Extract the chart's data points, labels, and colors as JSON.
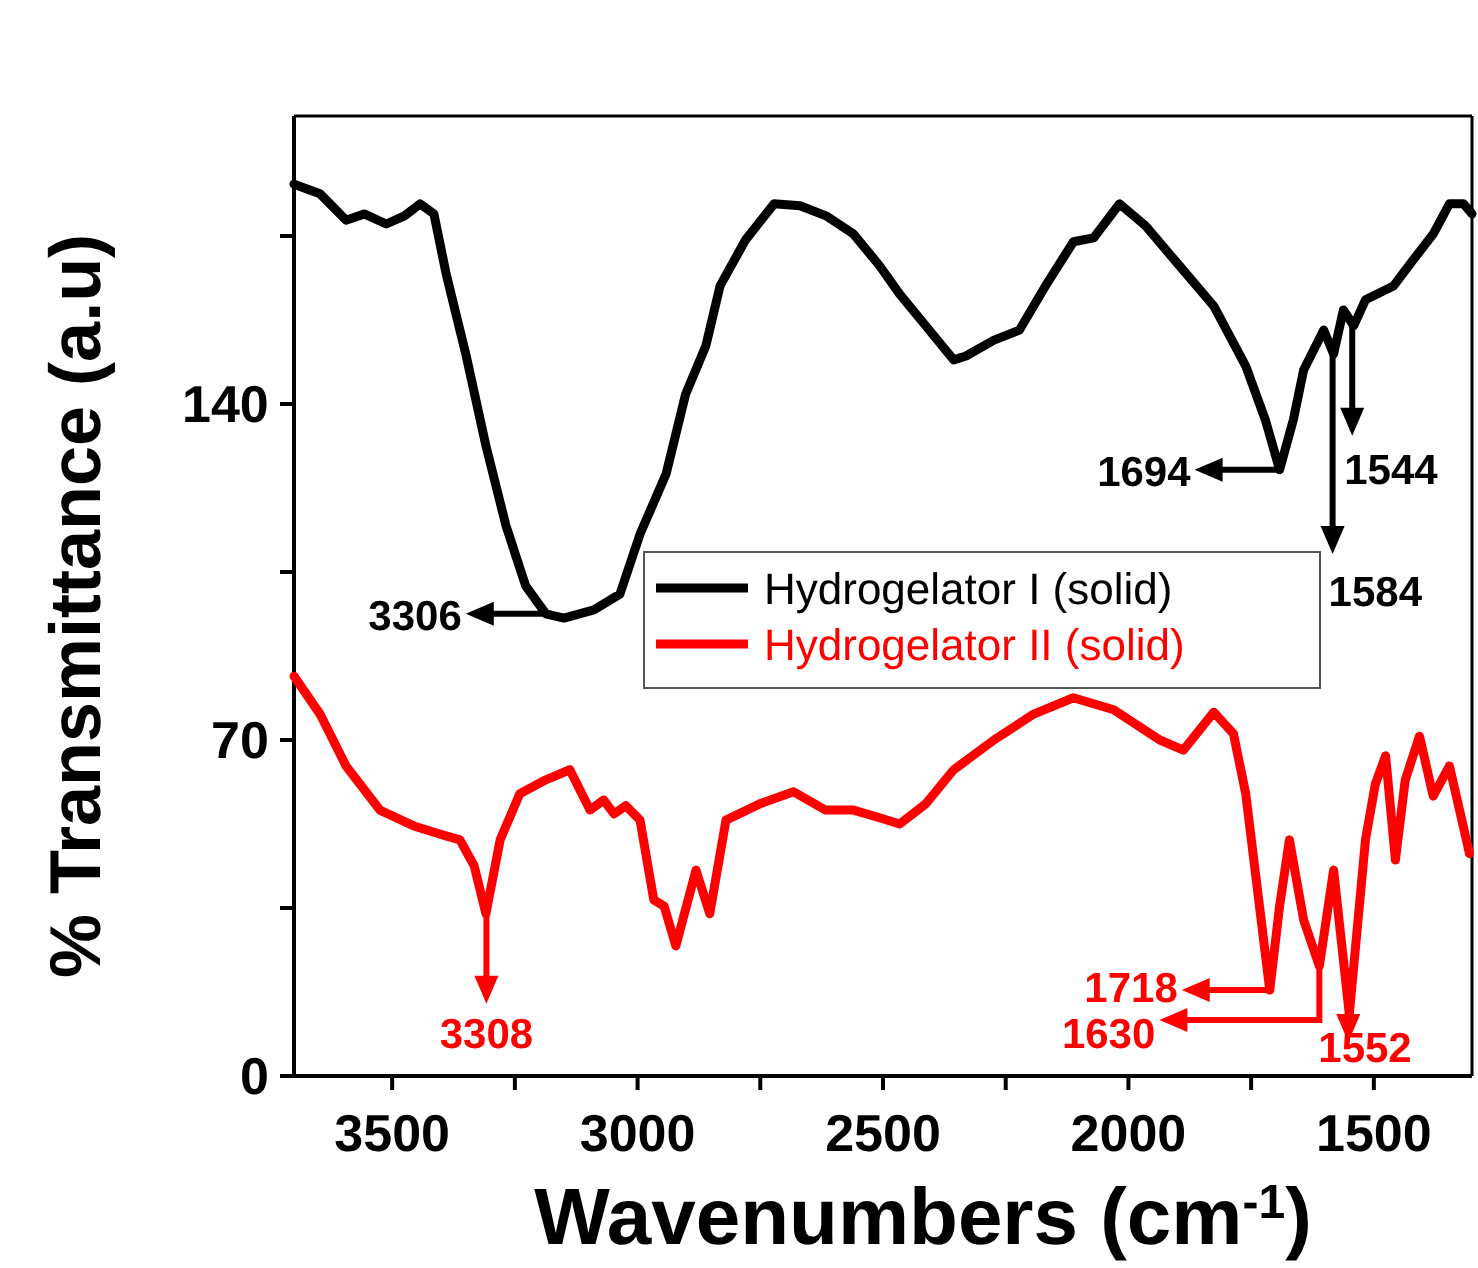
{
  "chart_data": {
    "type": "line",
    "xlabel": "Wavenumbers (cm$^{-1}$)",
    "ylabel": "% Transmittance (a.u)",
    "xlim": [
      3700,
      1300
    ],
    "xticks": [
      3500,
      {
        "value": 3250,
        "label": null
      },
      3000,
      {
        "value": 2750,
        "label": null
      },
      2500,
      {
        "value": 2250,
        "label": null
      },
      2000,
      {
        "value": 1750,
        "label": null
      },
      1500
    ],
    "ylim": [
      0,
      200
    ],
    "yticks": [
      0,
      {
        "value": 35,
        "label": null
      },
      70,
      {
        "value": 105,
        "label": null
      },
      140,
      {
        "value": 175,
        "label": null
      }
    ],
    "grid": false,
    "legend": "right",
    "line_style": "solid",
    "marker": "none",
    "series": [
      {
        "name": "Hydrogelator I (solid)",
        "color": "#000000",
        "x": [
          3700,
          3647,
          3594,
          3557,
          3512,
          3475,
          3443,
          3415,
          3390,
          3350,
          3309,
          3268,
          3228,
          3187,
          3150,
          3089,
          3036,
          2995,
          2942,
          2902,
          2861,
          2832,
          2780,
          2722,
          2669,
          2616,
          2560,
          2507,
          2466,
          2413,
          2356,
          2331,
          2274,
          2222,
          2169,
          2112,
          2071,
          2018,
          1965,
          1896,
          1826,
          1761,
          1721,
          1692,
          1664,
          1643,
          1602,
          1582,
          1562,
          1541,
          1517,
          1460,
          1420,
          1379,
          1346,
          1317,
          1300
        ],
        "values": [
          185.8,
          183.8,
          178.3,
          179.6,
          177.5,
          179.2,
          181.7,
          179.6,
          167.1,
          150.4,
          131.3,
          114.6,
          102.1,
          96.3,
          95.4,
          97.1,
          100.4,
          112.9,
          125.4,
          142.1,
          152.1,
          164.6,
          174.2,
          181.7,
          181.3,
          179.2,
          175.4,
          168.8,
          162.9,
          156.3,
          149.2,
          150.0,
          153.3,
          155.4,
          164.6,
          173.8,
          174.6,
          181.7,
          177.1,
          168.8,
          160.4,
          147.9,
          136.7,
          126.3,
          136.7,
          147.1,
          155.4,
          150.4,
          159.6,
          156.3,
          161.7,
          164.6,
          170.0,
          175.4,
          181.7,
          181.7,
          179.6
        ]
      },
      {
        "name": "Hydrogelator II (solid)",
        "color": "#ff0000",
        "x": [
          3700,
          3647,
          3594,
          3525,
          3456,
          3403,
          3362,
          3333,
          3309,
          3280,
          3240,
          3187,
          3138,
          3097,
          3069,
          3048,
          3024,
          2995,
          2967,
          2946,
          2922,
          2881,
          2853,
          2820,
          2751,
          2682,
          2617,
          2560,
          2507,
          2466,
          2413,
          2356,
          2274,
          2193,
          2112,
          2030,
          1936,
          1888,
          1826,
          1786,
          1761,
          1733,
          1712,
          1692,
          1672,
          1643,
          1611,
          1582,
          1550,
          1517,
          1497,
          1476,
          1456,
          1436,
          1407,
          1379,
          1346,
          1305
        ],
        "values": [
          83.3,
          75.4,
          64.6,
          55.4,
          52.1,
          50.4,
          49.2,
          43.8,
          33.8,
          49.2,
          58.8,
          61.7,
          63.8,
          55.4,
          57.5,
          54.6,
          56.3,
          53.3,
          36.7,
          35.4,
          27.1,
          42.9,
          33.8,
          53.3,
          56.7,
          59.2,
          55.4,
          55.4,
          53.8,
          52.5,
          56.7,
          63.8,
          70.0,
          75.4,
          78.8,
          76.3,
          70.0,
          67.9,
          75.8,
          71.3,
          58.8,
          35.4,
          17.9,
          35.4,
          49.2,
          32.5,
          22.9,
          42.9,
          12.9,
          49.2,
          60.8,
          66.7,
          45.0,
          61.7,
          70.8,
          58.3,
          64.6,
          46.3
        ]
      }
    ],
    "annotations": [
      {
        "text": "3306",
        "x": 3187,
        "y": 96.3
      },
      {
        "text": "1694",
        "x": 1694,
        "y": 126.3
      },
      {
        "text": "1584",
        "x": 1584,
        "y": 150.4
      },
      {
        "text": "1544",
        "x": 1544,
        "y": 156.3
      },
      {
        "text": "3308",
        "x": 3308,
        "y": 33.8
      },
      {
        "text": "1718",
        "x": 1712,
        "y": 17.9
      },
      {
        "text": "1630",
        "x": 1611,
        "y": 22.9
      },
      {
        "text": "1552",
        "x": 1552,
        "y": 12.9
      }
    ]
  }
}
